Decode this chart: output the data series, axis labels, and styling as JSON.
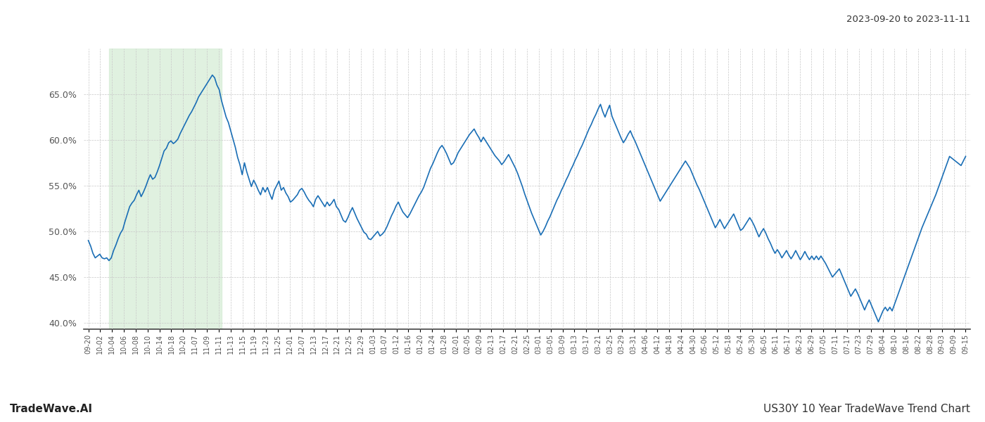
{
  "title_top_right": "2023-09-20 to 2023-11-11",
  "title_bottom_left": "TradeWave.AI",
  "title_bottom_right": "US30Y 10 Year TradeWave Trend Chart",
  "line_color": "#1a6eb5",
  "line_width": 1.2,
  "background_color": "#ffffff",
  "grid_color": "#c8c8c8",
  "grid_linestyle": "--",
  "highlight_color": "#d4ecd4",
  "highlight_alpha": 0.7,
  "ylim": [
    0.393,
    0.7
  ],
  "yticks": [
    0.4,
    0.45,
    0.5,
    0.55,
    0.6,
    0.65
  ],
  "highlight_start_x": "10-14",
  "highlight_end_x": "11-13",
  "x_tick_labels": [
    "09-20",
    "10-02",
    "10-04",
    "10-06",
    "10-08",
    "10-10",
    "10-14",
    "10-18",
    "10-20",
    "11-07",
    "11-09",
    "11-11",
    "11-13",
    "11-15",
    "11-19",
    "11-23",
    "11-25",
    "12-01",
    "12-07",
    "12-13",
    "12-17",
    "12-21",
    "12-25",
    "12-29",
    "01-03",
    "01-07",
    "01-12",
    "01-16",
    "01-20",
    "01-24",
    "01-28",
    "02-01",
    "02-05",
    "02-09",
    "02-13",
    "02-17",
    "02-21",
    "02-25",
    "03-01",
    "03-05",
    "03-09",
    "03-13",
    "03-17",
    "03-21",
    "03-25",
    "03-29",
    "03-31",
    "04-06",
    "04-12",
    "04-18",
    "04-24",
    "04-30",
    "05-06",
    "05-12",
    "05-18",
    "05-24",
    "05-30",
    "06-05",
    "06-11",
    "06-17",
    "06-23",
    "06-29",
    "07-05",
    "07-11",
    "07-17",
    "07-23",
    "07-29",
    "08-04",
    "08-10",
    "08-16",
    "08-22",
    "08-28",
    "09-03",
    "09-09",
    "09-15"
  ],
  "values": [
    0.49,
    0.484,
    0.476,
    0.471,
    0.473,
    0.475,
    0.471,
    0.47,
    0.471,
    0.468,
    0.471,
    0.479,
    0.485,
    0.492,
    0.498,
    0.502,
    0.511,
    0.519,
    0.527,
    0.531,
    0.534,
    0.54,
    0.545,
    0.538,
    0.543,
    0.549,
    0.556,
    0.562,
    0.557,
    0.559,
    0.565,
    0.572,
    0.58,
    0.588,
    0.591,
    0.597,
    0.599,
    0.596,
    0.598,
    0.601,
    0.607,
    0.612,
    0.617,
    0.622,
    0.627,
    0.631,
    0.636,
    0.641,
    0.647,
    0.651,
    0.655,
    0.659,
    0.663,
    0.667,
    0.671,
    0.668,
    0.66,
    0.655,
    0.643,
    0.634,
    0.625,
    0.619,
    0.61,
    0.601,
    0.592,
    0.581,
    0.573,
    0.562,
    0.575,
    0.565,
    0.557,
    0.549,
    0.556,
    0.551,
    0.545,
    0.54,
    0.548,
    0.543,
    0.548,
    0.541,
    0.535,
    0.545,
    0.55,
    0.555,
    0.545,
    0.548,
    0.542,
    0.538,
    0.532,
    0.534,
    0.537,
    0.54,
    0.545,
    0.547,
    0.543,
    0.538,
    0.534,
    0.531,
    0.527,
    0.535,
    0.539,
    0.535,
    0.531,
    0.527,
    0.532,
    0.528,
    0.531,
    0.535,
    0.527,
    0.524,
    0.518,
    0.512,
    0.51,
    0.515,
    0.521,
    0.526,
    0.52,
    0.514,
    0.509,
    0.504,
    0.499,
    0.497,
    0.492,
    0.491,
    0.494,
    0.497,
    0.5,
    0.495,
    0.497,
    0.5,
    0.505,
    0.511,
    0.517,
    0.522,
    0.528,
    0.532,
    0.526,
    0.521,
    0.518,
    0.515,
    0.519,
    0.524,
    0.529,
    0.534,
    0.539,
    0.543,
    0.548,
    0.555,
    0.562,
    0.569,
    0.574,
    0.58,
    0.586,
    0.591,
    0.594,
    0.59,
    0.585,
    0.579,
    0.573,
    0.575,
    0.58,
    0.586,
    0.59,
    0.594,
    0.598,
    0.602,
    0.606,
    0.609,
    0.612,
    0.607,
    0.603,
    0.598,
    0.603,
    0.599,
    0.595,
    0.591,
    0.587,
    0.583,
    0.58,
    0.577,
    0.573,
    0.576,
    0.58,
    0.584,
    0.579,
    0.574,
    0.569,
    0.563,
    0.556,
    0.549,
    0.541,
    0.534,
    0.527,
    0.52,
    0.514,
    0.508,
    0.502,
    0.496,
    0.5,
    0.505,
    0.511,
    0.516,
    0.522,
    0.528,
    0.534,
    0.539,
    0.545,
    0.55,
    0.556,
    0.561,
    0.567,
    0.572,
    0.578,
    0.583,
    0.589,
    0.594,
    0.6,
    0.606,
    0.612,
    0.617,
    0.623,
    0.628,
    0.634,
    0.639,
    0.631,
    0.625,
    0.632,
    0.638,
    0.626,
    0.62,
    0.614,
    0.608,
    0.602,
    0.597,
    0.601,
    0.606,
    0.61,
    0.604,
    0.599,
    0.593,
    0.587,
    0.581,
    0.575,
    0.569,
    0.563,
    0.557,
    0.551,
    0.545,
    0.539,
    0.533,
    0.537,
    0.541,
    0.545,
    0.549,
    0.553,
    0.557,
    0.561,
    0.565,
    0.569,
    0.573,
    0.577,
    0.573,
    0.569,
    0.563,
    0.557,
    0.551,
    0.546,
    0.54,
    0.534,
    0.528,
    0.522,
    0.516,
    0.51,
    0.504,
    0.508,
    0.513,
    0.508,
    0.503,
    0.507,
    0.511,
    0.515,
    0.519,
    0.513,
    0.507,
    0.501,
    0.503,
    0.507,
    0.511,
    0.515,
    0.511,
    0.506,
    0.5,
    0.494,
    0.499,
    0.503,
    0.498,
    0.492,
    0.487,
    0.481,
    0.476,
    0.48,
    0.476,
    0.471,
    0.475,
    0.479,
    0.474,
    0.47,
    0.474,
    0.479,
    0.474,
    0.469,
    0.473,
    0.478,
    0.473,
    0.469,
    0.473,
    0.469,
    0.473,
    0.469,
    0.473,
    0.469,
    0.465,
    0.46,
    0.455,
    0.45,
    0.453,
    0.456,
    0.459,
    0.453,
    0.447,
    0.441,
    0.435,
    0.429,
    0.433,
    0.437,
    0.432,
    0.426,
    0.42,
    0.414,
    0.42,
    0.425,
    0.419,
    0.413,
    0.407,
    0.401,
    0.407,
    0.413,
    0.417,
    0.413,
    0.417,
    0.413,
    0.42,
    0.427,
    0.434,
    0.441,
    0.448,
    0.455,
    0.462,
    0.469,
    0.476,
    0.483,
    0.49,
    0.497,
    0.504,
    0.51,
    0.516,
    0.522,
    0.528,
    0.534,
    0.54,
    0.547,
    0.554,
    0.561,
    0.568,
    0.575,
    0.582,
    0.58,
    0.578,
    0.576,
    0.574,
    0.572,
    0.577,
    0.582
  ]
}
